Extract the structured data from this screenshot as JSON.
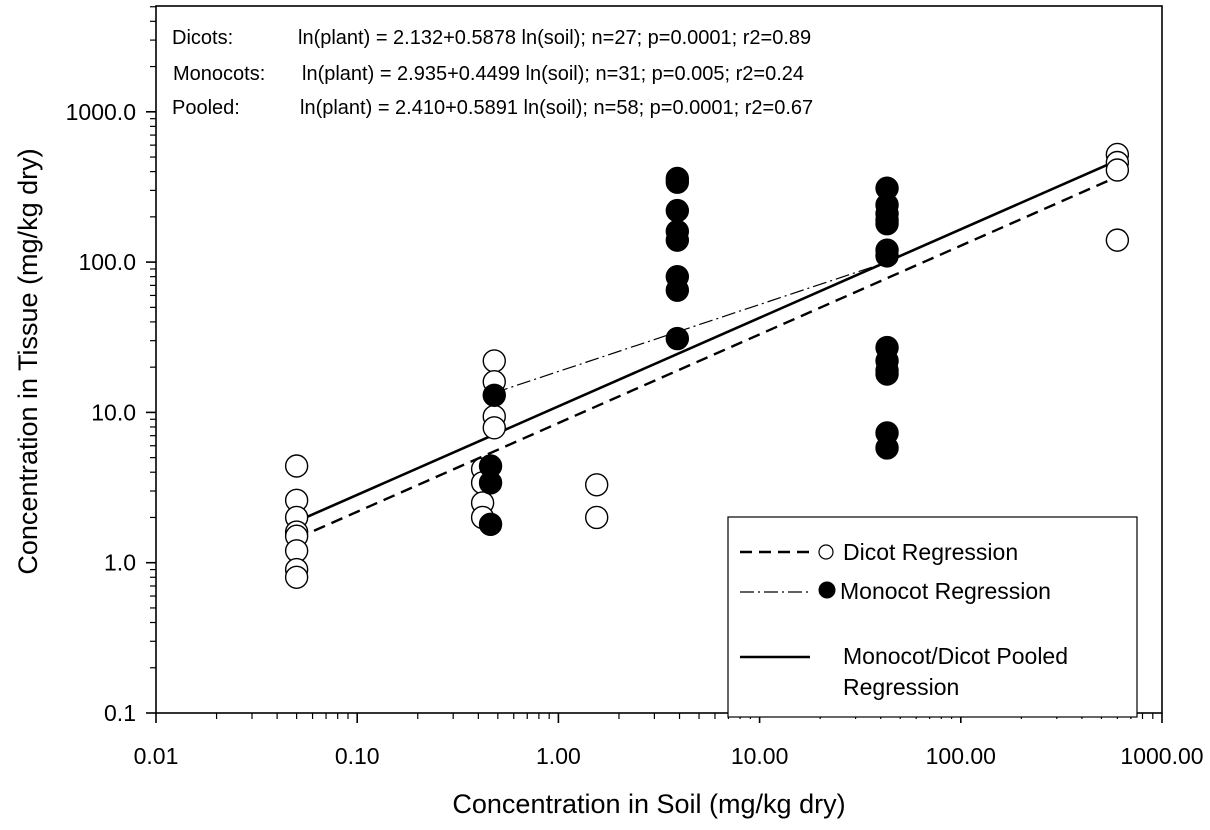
{
  "chart_data": {
    "type": "scatter",
    "title": "",
    "xlabel": "Concentration in Soil (mg/kg dry)",
    "ylabel": "Concentration in Tissue (mg/kg dry)",
    "x_scale": "log",
    "y_scale": "log",
    "xlim": [
      0.01,
      1000
    ],
    "ylim": [
      0.1,
      5000
    ],
    "x_ticks": [
      0.01,
      0.1,
      1,
      10,
      100,
      1000
    ],
    "x_tick_labels": [
      "0.01",
      "0.10",
      "1.00",
      "10.00",
      "100.00",
      "1000.00"
    ],
    "y_ticks": [
      0.1,
      1,
      10,
      100,
      1000
    ],
    "y_tick_labels": [
      "0.1",
      "1.0",
      "10.0",
      "100.0",
      "1000.0"
    ],
    "grid": false,
    "legend_position": "bottom-right",
    "equations": [
      {
        "group": "Dicots:",
        "text": "ln(plant) = 2.132+0.5878 ln(soil); n=27; p=0.0001; r2=0.89"
      },
      {
        "group": "Monocots:",
        "text": "ln(plant) = 2.935+0.4499 ln(soil); n=31; p=0.005; r2=0.24"
      },
      {
        "group": "Pooled:",
        "text": "ln(plant) = 2.410+0.5891 ln(soil); n=58; p=0.0001; r2=0.67"
      }
    ],
    "series": [
      {
        "name": "Dicot Regression",
        "marker": "open-circle",
        "points": [
          [
            0.05,
            4.4
          ],
          [
            0.05,
            2.6
          ],
          [
            0.05,
            2.0
          ],
          [
            0.05,
            1.6
          ],
          [
            0.05,
            1.5
          ],
          [
            0.05,
            1.2
          ],
          [
            0.05,
            0.9
          ],
          [
            0.05,
            0.8
          ],
          [
            0.42,
            4.2
          ],
          [
            0.42,
            3.4
          ],
          [
            0.42,
            2.5
          ],
          [
            0.42,
            2.0
          ],
          [
            0.48,
            22
          ],
          [
            0.48,
            16
          ],
          [
            0.48,
            9.4
          ],
          [
            0.48,
            7.9
          ],
          [
            1.55,
            3.3
          ],
          [
            1.55,
            2.0
          ],
          [
            600,
            520
          ],
          [
            600,
            460
          ],
          [
            600,
            410
          ],
          [
            600,
            140
          ]
        ],
        "line": {
          "style": "dashed",
          "x": [
            0.05,
            600
          ],
          "y": [
            1.45,
            370
          ]
        }
      },
      {
        "name": "Monocot Regression",
        "marker": "filled-circle",
        "points": [
          [
            0.46,
            4.4
          ],
          [
            0.46,
            3.4
          ],
          [
            0.46,
            1.8
          ],
          [
            0.48,
            13
          ],
          [
            3.9,
            360
          ],
          [
            3.9,
            340
          ],
          [
            3.9,
            220
          ],
          [
            3.9,
            160
          ],
          [
            3.9,
            140
          ],
          [
            3.9,
            80
          ],
          [
            3.9,
            65
          ],
          [
            3.9,
            31
          ],
          [
            43,
            310
          ],
          [
            43,
            240
          ],
          [
            43,
            210
          ],
          [
            43,
            190
          ],
          [
            43,
            180
          ],
          [
            43,
            120
          ],
          [
            43,
            110
          ],
          [
            43,
            27
          ],
          [
            43,
            22
          ],
          [
            43,
            19
          ],
          [
            43,
            18
          ],
          [
            43,
            7.3
          ],
          [
            43,
            5.8
          ]
        ],
        "line": {
          "style": "dash-dot",
          "x": [
            0.48,
            43
          ],
          "y": [
            13.5,
            100
          ]
        }
      },
      {
        "name": "Monocot/Dicot Pooled Regression",
        "marker": "none",
        "line": {
          "style": "solid",
          "x": [
            0.05,
            600
          ],
          "y": [
            1.88,
            475
          ]
        }
      }
    ],
    "legend": [
      {
        "label": "Dicot Regression",
        "line": "dashed",
        "marker": "open-circle"
      },
      {
        "label": "Monocot Regression",
        "line": "dash-dot",
        "marker": "filled-circle"
      },
      {
        "label": "Monocot/Dicot Pooled",
        "label2": "Regression",
        "line": "solid",
        "marker": "none"
      }
    ]
  }
}
